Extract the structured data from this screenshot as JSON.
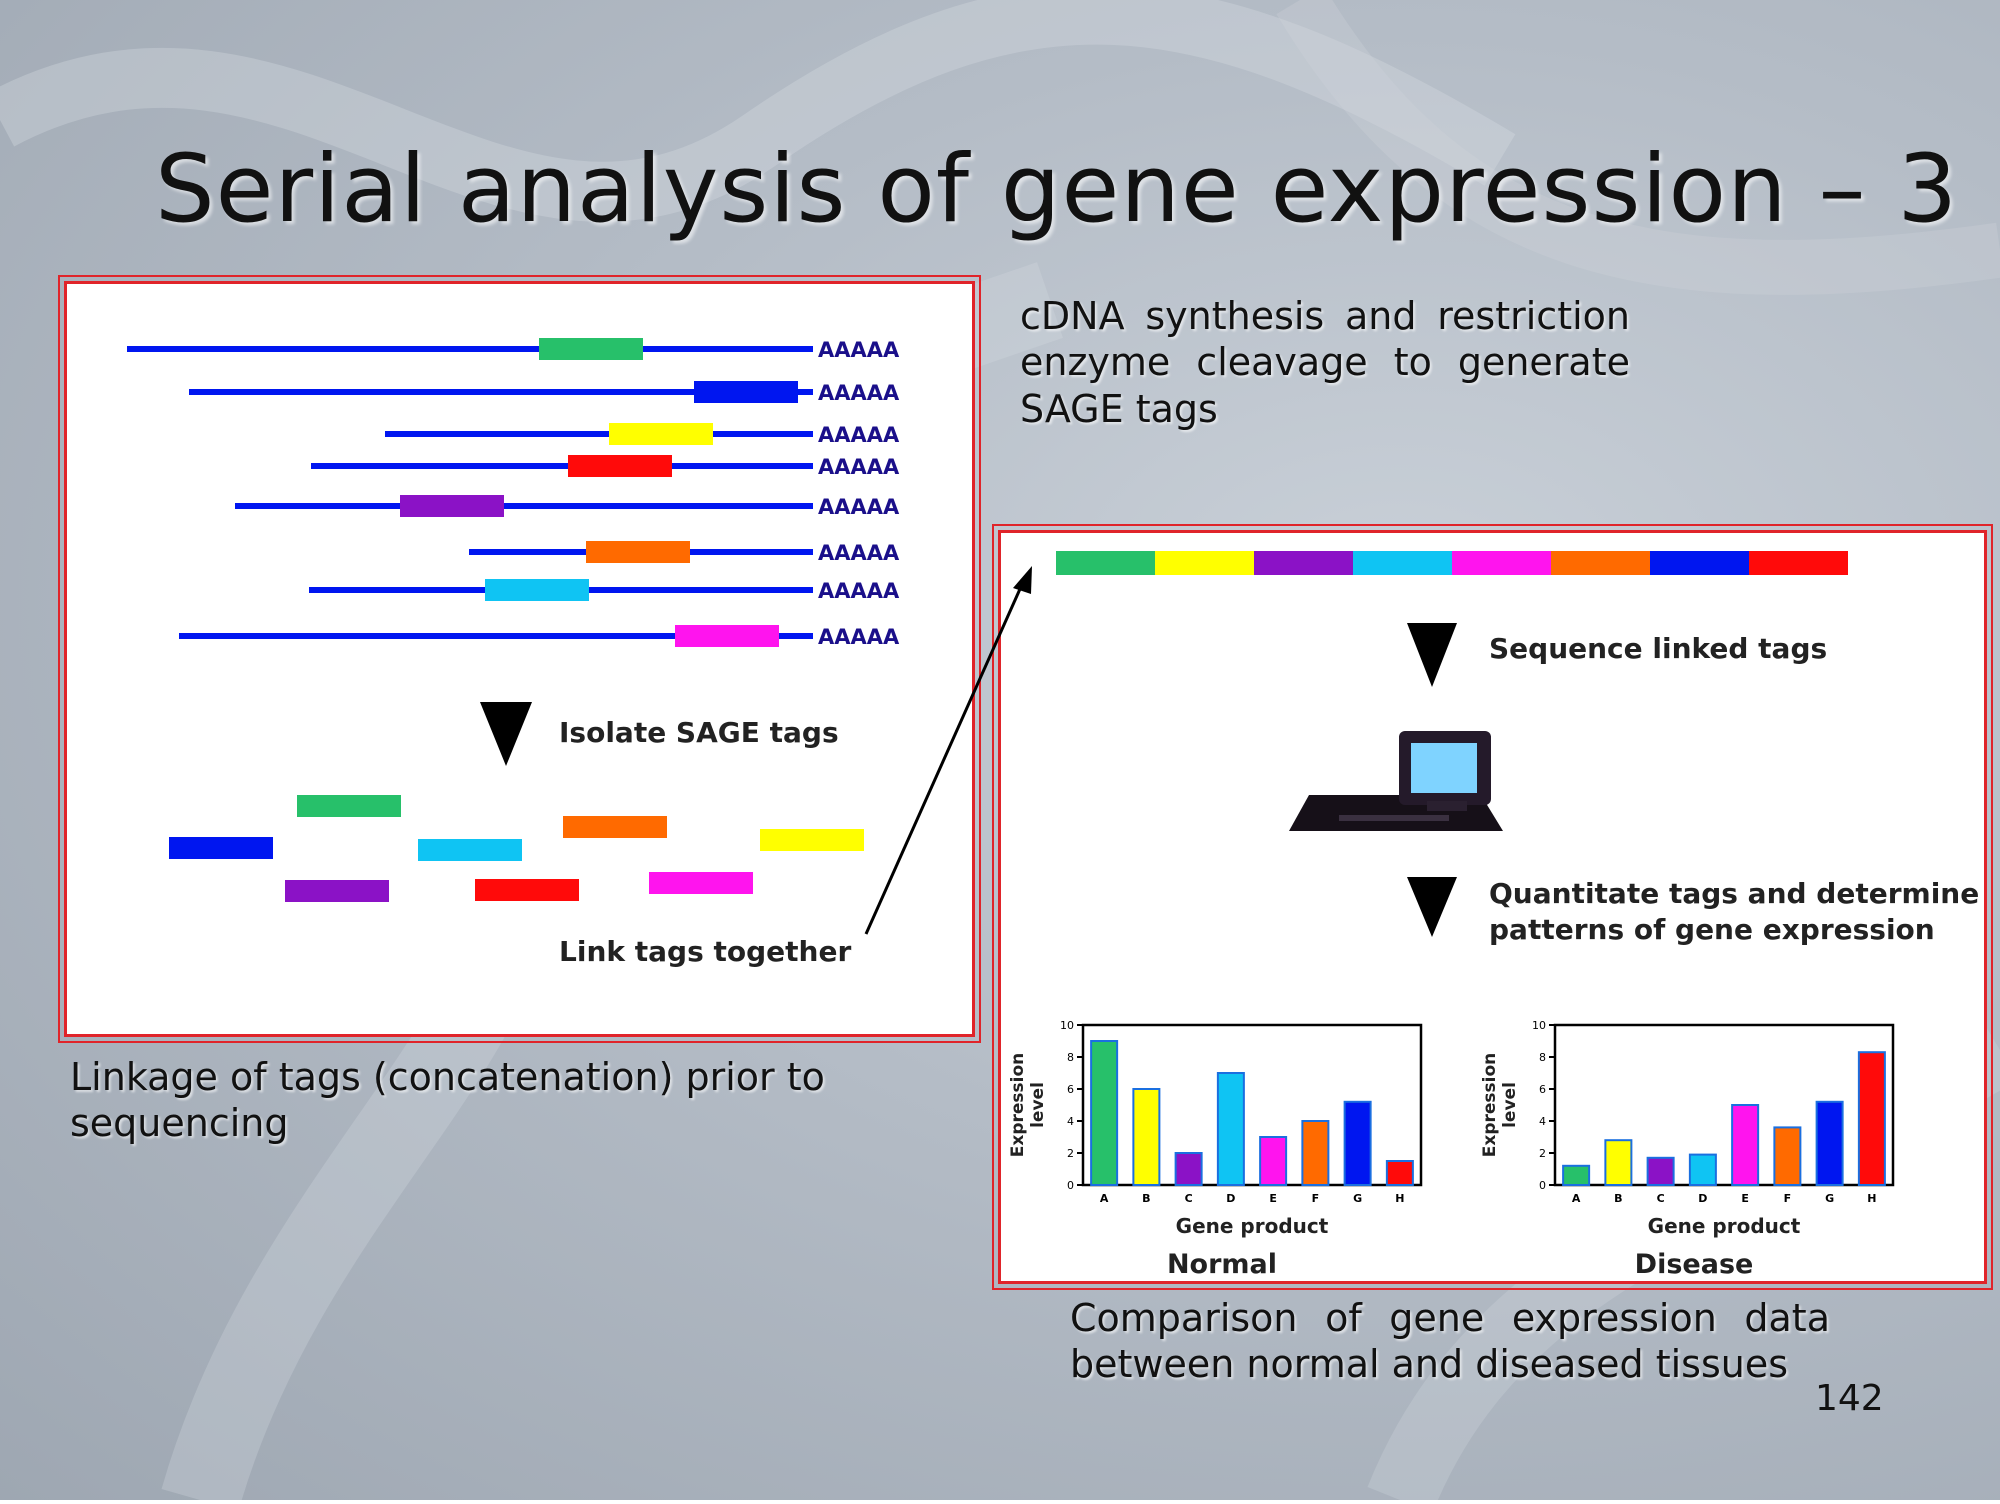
{
  "slide": {
    "title": "Serial analysis of gene expression – 3",
    "page_number": "142"
  },
  "captions": {
    "cdna_synthesis": "cDNA synthesis and restriction enzyme cleavage to generate SAGE tags",
    "linkage": "Linkage of tags (concatenation) prior to sequencing",
    "comparison": "Comparison of gene expression data between normal and diseased tissues"
  },
  "left_panel": {
    "polya_label": "AAAAA",
    "isolate_label": "Isolate SAGE tags",
    "link_label": "Link tags together"
  },
  "right_panel": {
    "sequence_label": "Sequence linked tags",
    "quantitate_line1": "Quantitate tags and determine",
    "quantitate_line2": "patterns of gene expression"
  },
  "tag_colors": [
    "#27c06a",
    "#ffff00",
    "#8b12c6",
    "#0fc4f3",
    "#ff14ee",
    "#ff6a00",
    "#0016f0",
    "#ff0a0a"
  ],
  "chart_data": [
    {
      "type": "bar",
      "title": "Normal",
      "xlabel": "Gene product",
      "ylabel": "Expression level",
      "categories": [
        "A",
        "B",
        "C",
        "D",
        "E",
        "F",
        "G",
        "H"
      ],
      "values": [
        9,
        6,
        2,
        7,
        3,
        4,
        5.2,
        1.5
      ],
      "ylim": [
        0,
        10
      ],
      "yticks": [
        "0",
        "2",
        "4",
        "6",
        "8",
        "10"
      ],
      "colors": [
        "#27c06a",
        "#ffff00",
        "#8b12c6",
        "#0fc4f3",
        "#ff14ee",
        "#ff6a00",
        "#0016f0",
        "#ff0a0a"
      ]
    },
    {
      "type": "bar",
      "title": "Disease",
      "xlabel": "Gene product",
      "ylabel": "Expression level",
      "categories": [
        "A",
        "B",
        "C",
        "D",
        "E",
        "F",
        "G",
        "H"
      ],
      "values": [
        1.2,
        2.8,
        1.7,
        1.9,
        5,
        3.6,
        5.2,
        8.3
      ],
      "ylim": [
        0,
        10
      ],
      "yticks": [
        "0",
        "2",
        "4",
        "6",
        "8",
        "10"
      ],
      "colors": [
        "#27c06a",
        "#ffff00",
        "#8b12c6",
        "#0fc4f3",
        "#ff14ee",
        "#ff6a00",
        "#0016f0",
        "#ff0a0a"
      ]
    }
  ]
}
